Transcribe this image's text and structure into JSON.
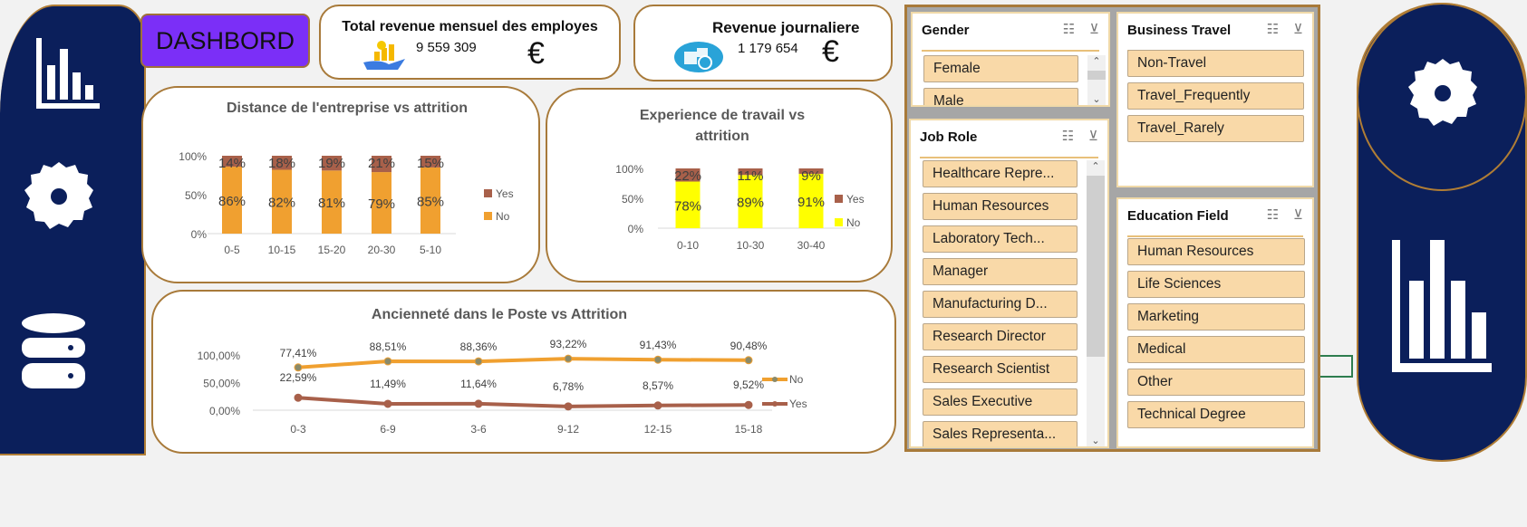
{
  "header": {
    "title": "DASHBORD"
  },
  "kpi": [
    {
      "title": "Total revenue mensuel des employes",
      "value": "9 559 309",
      "currency": "€",
      "icon": "money-hand-icon"
    },
    {
      "title": "Revenue journaliere",
      "value": "1 179 654",
      "currency": "€",
      "icon": "coins-icon"
    }
  ],
  "colors": {
    "navy": "#0b1f5b",
    "gold": "#a87a3a",
    "purple": "#7b2ff7",
    "no_orange": "#f0a030",
    "yes_brown": "#a8604a",
    "no_yellow": "#ffff00",
    "slicer_item": "#f9d9a8"
  },
  "chart_data": [
    {
      "type": "bar",
      "stacked": true,
      "title": "Distance de l'entreprise vs attrition",
      "categories": [
        "0-5",
        "10-15",
        "15-20",
        "20-30",
        "5-10"
      ],
      "series": [
        {
          "name": "No",
          "values": [
            86,
            82,
            81,
            79,
            85
          ],
          "labels": [
            "86%",
            "82%",
            "81%",
            "79%",
            "85%"
          ]
        },
        {
          "name": "Yes",
          "values": [
            14,
            18,
            19,
            21,
            15
          ],
          "labels": [
            "14%",
            "18%",
            "19%",
            "21%",
            "15%"
          ]
        }
      ],
      "yticks": [
        "0%",
        "50%",
        "100%"
      ],
      "ylim": [
        0,
        100
      ],
      "legend": "right"
    },
    {
      "type": "bar",
      "stacked": true,
      "title_lines": [
        "Experience de travail vs",
        "attrition"
      ],
      "categories": [
        "0-10",
        "10-30",
        "30-40"
      ],
      "series": [
        {
          "name": "No",
          "values": [
            78,
            89,
            91
          ],
          "labels": [
            "78%",
            "89%",
            "91%"
          ]
        },
        {
          "name": "Yes",
          "values": [
            22,
            11,
            9
          ],
          "labels": [
            "22%",
            "11%",
            "9%"
          ]
        }
      ],
      "yticks": [
        "0%",
        "50%",
        "100%"
      ],
      "ylim": [
        0,
        100
      ],
      "legend": "right"
    },
    {
      "type": "line",
      "title": "Ancienneté dans le Poste vs Attrition",
      "categories": [
        "0-3",
        "6-9",
        "3-6",
        "9-12",
        "12-15",
        "15-18"
      ],
      "series": [
        {
          "name": "No",
          "values": [
            77.41,
            88.51,
            88.36,
            93.22,
            91.43,
            90.48
          ],
          "labels": [
            "77,41%",
            "88,51%",
            "88,36%",
            "93,22%",
            "91,43%",
            "90,48%"
          ]
        },
        {
          "name": "Yes",
          "values": [
            22.59,
            11.49,
            11.64,
            6.78,
            8.57,
            9.52
          ],
          "labels": [
            "22,59%",
            "11,49%",
            "11,64%",
            "6,78%",
            "8,57%",
            "9,52%"
          ]
        }
      ],
      "yticks": [
        "0,00%",
        "50,00%",
        "100,00%"
      ],
      "ylim": [
        0,
        100
      ],
      "legend": "right"
    }
  ],
  "slicers": {
    "gender": {
      "title": "Gender",
      "items": [
        "Female",
        "Male"
      ]
    },
    "job_role": {
      "title": "Job Role",
      "items": [
        "Healthcare Repre...",
        "Human Resources",
        "Laboratory Tech...",
        "Manager",
        "Manufacturing D...",
        "Research Director",
        "Research Scientist",
        "Sales Executive",
        "Sales Representa..."
      ]
    },
    "business_travel": {
      "title": "Business Travel",
      "items": [
        "Non-Travel",
        "Travel_Frequently",
        "Travel_Rarely"
      ]
    },
    "education_field": {
      "title": "Education Field",
      "items": [
        "Human Resources",
        "Life Sciences",
        "Marketing",
        "Medical",
        "Other",
        "Technical Degree"
      ]
    }
  }
}
